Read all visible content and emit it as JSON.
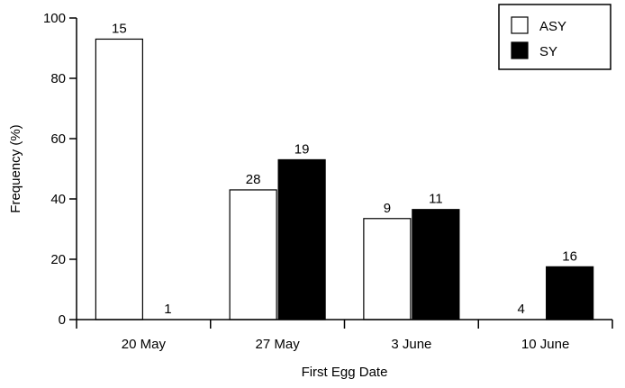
{
  "chart_data": {
    "type": "bar",
    "title": "",
    "xlabel": "First Egg Date",
    "ylabel": "Frequency (%)",
    "ylim": [
      0,
      100
    ],
    "yticks": [
      0,
      20,
      40,
      60,
      80,
      100
    ],
    "categories": [
      "20 May",
      "27 May",
      "3 June",
      "10 June"
    ],
    "grid": false,
    "legend": {
      "placement": "top-right"
    },
    "series": [
      {
        "name": "ASY",
        "fill": "#ffffff",
        "values": [
          93,
          43,
          33.5,
          0
        ],
        "labels": [
          "15",
          "28",
          "9",
          "4"
        ]
      },
      {
        "name": "SY",
        "fill": "#000000",
        "values": [
          0,
          53,
          36.5,
          17.5
        ],
        "labels": [
          "1",
          "19",
          "11",
          "16"
        ]
      }
    ]
  }
}
